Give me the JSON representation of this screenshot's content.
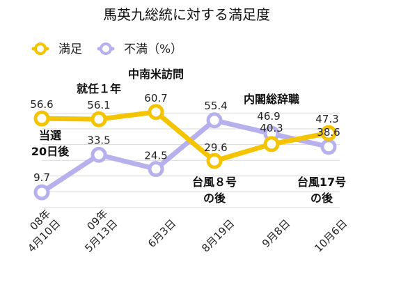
{
  "chart_data": {
    "type": "line",
    "title": "馬英九総統に対する満足度",
    "categories": [
      [
        "08年",
        "4月10日"
      ],
      [
        "09年",
        "5月13日"
      ],
      [
        "6月3日"
      ],
      [
        "8月19日"
      ],
      [
        "9月8日"
      ],
      [
        "10月6日"
      ]
    ],
    "series": [
      {
        "name": "満足",
        "color": "#F5C400",
        "values": [
          56.6,
          56.1,
          60.7,
          29.6,
          40.3,
          47.3
        ],
        "labels": [
          "56.6",
          "56.1",
          "60.7",
          "29.6",
          "40.3",
          "47.3"
        ]
      },
      {
        "name": "不満（%）",
        "color": "#B6B0EC",
        "values": [
          9.7,
          33.5,
          24.5,
          55.4,
          46.9,
          38.6
        ],
        "labels": [
          "9.7",
          "33.5",
          "24.5",
          "55.4",
          "46.9",
          "38.6"
        ]
      }
    ],
    "annotations": [
      {
        "lines": [
          "就任１年"
        ]
      },
      {
        "lines": [
          "中南米訪問"
        ]
      },
      {
        "lines": [
          "内閣総辞職"
        ]
      },
      {
        "lines": [
          "当選",
          "20日後"
        ]
      },
      {
        "lines": [
          "台風８号",
          "の後"
        ]
      },
      {
        "lines": [
          "台風17号",
          "の後"
        ]
      }
    ],
    "ylim": [
      0,
      70
    ],
    "grid": true,
    "legend": "top-left"
  }
}
